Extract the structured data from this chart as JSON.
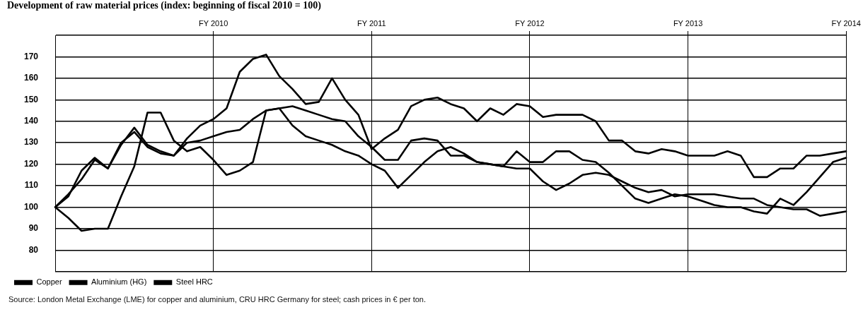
{
  "chart_data": {
    "type": "line",
    "title": "Development of raw material prices (index: beginning of fiscal 2010 = 100)",
    "categories": [
      null,
      null,
      null,
      null,
      null,
      null,
      null,
      null,
      null,
      null,
      null,
      null,
      "FY 2010",
      null,
      null,
      null,
      null,
      null,
      null,
      null,
      null,
      null,
      null,
      null,
      "FY 2011",
      null,
      null,
      null,
      null,
      null,
      null,
      null,
      null,
      null,
      null,
      null,
      "FY 2012",
      null,
      null,
      null,
      null,
      null,
      null,
      null,
      null,
      null,
      null,
      null,
      "FY 2013",
      null,
      null,
      null,
      null,
      null,
      null,
      null,
      null,
      null,
      null,
      null,
      "FY 2014"
    ],
    "ylim": [
      70,
      180
    ],
    "yticks": [
      {
        "value": 70,
        "label": null
      },
      80,
      90,
      100,
      110,
      120,
      130,
      140,
      150,
      160,
      170,
      {
        "value": 180,
        "label": null
      }
    ],
    "grid": true,
    "legend": "bottom left",
    "marker": "none",
    "series": [
      {
        "name": "Copper",
        "color": "#000000",
        "values": [
          100,
          106,
          113,
          122,
          118,
          129,
          137,
          129,
          126,
          124,
          132,
          138,
          141,
          146,
          163,
          169,
          171,
          161,
          155,
          148,
          149,
          160,
          150,
          143,
          127,
          132,
          136,
          147,
          150,
          151,
          148,
          146,
          140,
          146,
          143,
          148,
          147,
          142,
          143,
          143,
          143,
          140,
          131,
          131,
          126,
          125,
          127,
          126,
          124,
          124,
          124,
          126,
          124,
          114,
          114,
          118,
          118,
          124,
          124,
          125,
          126
        ]
      },
      {
        "name": "Aluminium (HG)",
        "color": "#000000",
        "values": [
          100,
          105,
          117,
          123,
          118,
          130,
          135,
          128,
          125,
          124,
          130,
          131,
          133,
          135,
          136,
          141,
          145,
          146,
          147,
          145,
          143,
          141,
          140,
          133,
          128,
          122,
          122,
          131,
          132,
          131,
          124,
          124,
          121,
          120,
          119,
          126,
          121,
          121,
          126,
          126,
          122,
          121,
          116,
          110,
          104,
          102,
          104,
          106,
          105,
          103,
          101,
          100,
          100,
          98,
          97,
          104,
          101,
          107,
          114,
          121,
          123
        ]
      },
      {
        "name": "Steel HRC",
        "color": "#000000",
        "values": [
          100,
          95,
          89,
          90,
          90,
          105,
          119,
          144,
          144,
          131,
          126,
          128,
          122,
          115,
          117,
          121,
          145,
          146,
          138,
          133,
          131,
          129,
          126,
          124,
          120,
          117,
          109,
          115,
          121,
          126,
          128,
          125,
          121,
          120,
          119,
          118,
          118,
          112,
          108,
          111,
          115,
          116,
          115,
          112,
          109,
          107,
          108,
          105,
          106,
          106,
          106,
          105,
          104,
          104,
          101,
          100,
          99,
          99,
          96,
          97,
          98
        ]
      }
    ],
    "annotations": [
      "Source: London Metal Exchange (LME) for copper and aluminium, CRU HRC Germany for steel; cash prices in € per ton."
    ]
  }
}
